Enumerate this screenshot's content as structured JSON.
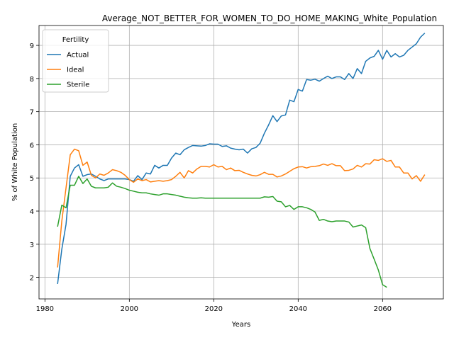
{
  "chart_data": {
    "type": "line",
    "title": "Average_NOT_BETTER_FOR_WOMEN_TO_DO_HOME_MAKING_White_Population",
    "xlabel": "Years",
    "ylabel": "% of White Population",
    "xlim": [
      1978.6,
      2074.4
    ],
    "ylim": [
      1.35,
      9.6
    ],
    "xticks": [
      1980,
      2000,
      2020,
      2040,
      2060
    ],
    "yticks": [
      2,
      3,
      4,
      5,
      6,
      7,
      8,
      9
    ],
    "grid": true,
    "legend": {
      "title": "Fertility",
      "placement": "upper-left"
    },
    "series": [
      {
        "name": "Actual",
        "color": "#1f77b4",
        "points": [
          [
            1983,
            1.8
          ],
          [
            1984,
            2.85
          ],
          [
            1985,
            3.6
          ],
          [
            1986,
            5.05
          ],
          [
            1987,
            5.3
          ],
          [
            1988,
            5.4
          ],
          [
            1989,
            5.05
          ],
          [
            1990,
            5.1
          ],
          [
            1991,
            5.12
          ],
          [
            1992,
            5.05
          ],
          [
            1993,
            4.97
          ],
          [
            1994,
            4.92
          ],
          [
            1995,
            4.97
          ],
          [
            1996,
            4.97
          ],
          [
            1997,
            4.97
          ],
          [
            1998,
            4.97
          ],
          [
            1999,
            4.97
          ],
          [
            2000,
            4.95
          ],
          [
            2001,
            4.9
          ],
          [
            2002,
            5.07
          ],
          [
            2003,
            4.95
          ],
          [
            2004,
            5.15
          ],
          [
            2005,
            5.12
          ],
          [
            2006,
            5.38
          ],
          [
            2007,
            5.3
          ],
          [
            2008,
            5.38
          ],
          [
            2009,
            5.38
          ],
          [
            2010,
            5.6
          ],
          [
            2011,
            5.75
          ],
          [
            2012,
            5.7
          ],
          [
            2013,
            5.85
          ],
          [
            2014,
            5.92
          ],
          [
            2015,
            5.98
          ],
          [
            2016,
            5.97
          ],
          [
            2017,
            5.96
          ],
          [
            2018,
            5.98
          ],
          [
            2019,
            6.03
          ],
          [
            2020,
            6.02
          ],
          [
            2021,
            6.02
          ],
          [
            2022,
            5.95
          ],
          [
            2023,
            5.97
          ],
          [
            2024,
            5.9
          ],
          [
            2025,
            5.87
          ],
          [
            2026,
            5.85
          ],
          [
            2027,
            5.87
          ],
          [
            2028,
            5.75
          ],
          [
            2029,
            5.88
          ],
          [
            2030,
            5.92
          ],
          [
            2031,
            6.05
          ],
          [
            2032,
            6.35
          ],
          [
            2033,
            6.6
          ],
          [
            2034,
            6.88
          ],
          [
            2035,
            6.7
          ],
          [
            2036,
            6.87
          ],
          [
            2037,
            6.9
          ],
          [
            2038,
            7.35
          ],
          [
            2039,
            7.3
          ],
          [
            2040,
            7.67
          ],
          [
            2041,
            7.62
          ],
          [
            2042,
            7.97
          ],
          [
            2043,
            7.95
          ],
          [
            2044,
            7.98
          ],
          [
            2045,
            7.92
          ],
          [
            2046,
            8.0
          ],
          [
            2047,
            8.07
          ],
          [
            2048,
            8.0
          ],
          [
            2049,
            8.05
          ],
          [
            2050,
            8.05
          ],
          [
            2051,
            7.97
          ],
          [
            2052,
            8.15
          ],
          [
            2053,
            8.0
          ],
          [
            2054,
            8.3
          ],
          [
            2055,
            8.15
          ],
          [
            2056,
            8.52
          ],
          [
            2057,
            8.62
          ],
          [
            2058,
            8.67
          ],
          [
            2059,
            8.85
          ],
          [
            2060,
            8.58
          ],
          [
            2061,
            8.85
          ],
          [
            2062,
            8.65
          ],
          [
            2063,
            8.75
          ],
          [
            2064,
            8.65
          ],
          [
            2065,
            8.7
          ],
          [
            2066,
            8.85
          ],
          [
            2067,
            8.95
          ],
          [
            2068,
            9.05
          ],
          [
            2069,
            9.25
          ],
          [
            2070,
            9.37
          ]
        ]
      },
      {
        "name": "Ideal",
        "color": "#ff7f0e",
        "points": [
          [
            1983,
            2.3
          ],
          [
            1984,
            3.7
          ],
          [
            1985,
            4.7
          ],
          [
            1986,
            5.7
          ],
          [
            1987,
            5.87
          ],
          [
            1988,
            5.82
          ],
          [
            1989,
            5.38
          ],
          [
            1990,
            5.48
          ],
          [
            1991,
            5.08
          ],
          [
            1992,
            5.0
          ],
          [
            1993,
            5.12
          ],
          [
            1994,
            5.08
          ],
          [
            1995,
            5.15
          ],
          [
            1996,
            5.25
          ],
          [
            1997,
            5.22
          ],
          [
            1998,
            5.17
          ],
          [
            1999,
            5.08
          ],
          [
            2000,
            4.95
          ],
          [
            2001,
            4.87
          ],
          [
            2002,
            4.97
          ],
          [
            2003,
            4.92
          ],
          [
            2004,
            4.95
          ],
          [
            2005,
            4.88
          ],
          [
            2006,
            4.9
          ],
          [
            2007,
            4.92
          ],
          [
            2008,
            4.9
          ],
          [
            2009,
            4.92
          ],
          [
            2010,
            4.95
          ],
          [
            2011,
            5.05
          ],
          [
            2012,
            5.17
          ],
          [
            2013,
            5.0
          ],
          [
            2014,
            5.22
          ],
          [
            2015,
            5.15
          ],
          [
            2016,
            5.27
          ],
          [
            2017,
            5.35
          ],
          [
            2018,
            5.35
          ],
          [
            2019,
            5.33
          ],
          [
            2020,
            5.4
          ],
          [
            2021,
            5.33
          ],
          [
            2022,
            5.35
          ],
          [
            2023,
            5.25
          ],
          [
            2024,
            5.3
          ],
          [
            2025,
            5.22
          ],
          [
            2026,
            5.23
          ],
          [
            2027,
            5.17
          ],
          [
            2028,
            5.12
          ],
          [
            2029,
            5.08
          ],
          [
            2030,
            5.06
          ],
          [
            2031,
            5.1
          ],
          [
            2032,
            5.17
          ],
          [
            2033,
            5.11
          ],
          [
            2034,
            5.11
          ],
          [
            2035,
            5.03
          ],
          [
            2036,
            5.06
          ],
          [
            2037,
            5.12
          ],
          [
            2038,
            5.2
          ],
          [
            2039,
            5.28
          ],
          [
            2040,
            5.33
          ],
          [
            2041,
            5.34
          ],
          [
            2042,
            5.3
          ],
          [
            2043,
            5.34
          ],
          [
            2044,
            5.35
          ],
          [
            2045,
            5.37
          ],
          [
            2046,
            5.42
          ],
          [
            2047,
            5.38
          ],
          [
            2048,
            5.43
          ],
          [
            2049,
            5.37
          ],
          [
            2050,
            5.37
          ],
          [
            2051,
            5.22
          ],
          [
            2052,
            5.23
          ],
          [
            2053,
            5.27
          ],
          [
            2054,
            5.38
          ],
          [
            2055,
            5.33
          ],
          [
            2056,
            5.43
          ],
          [
            2057,
            5.42
          ],
          [
            2058,
            5.55
          ],
          [
            2059,
            5.53
          ],
          [
            2060,
            5.58
          ],
          [
            2061,
            5.5
          ],
          [
            2062,
            5.53
          ],
          [
            2063,
            5.33
          ],
          [
            2064,
            5.33
          ],
          [
            2065,
            5.15
          ],
          [
            2066,
            5.15
          ],
          [
            2067,
            4.97
          ],
          [
            2068,
            5.07
          ],
          [
            2069,
            4.9
          ],
          [
            2070,
            5.1
          ]
        ]
      },
      {
        "name": "Sterile",
        "color": "#2ca02c",
        "points": [
          [
            1983,
            3.53
          ],
          [
            1984,
            4.18
          ],
          [
            1985,
            4.1
          ],
          [
            1986,
            4.78
          ],
          [
            1987,
            4.78
          ],
          [
            1988,
            5.05
          ],
          [
            1989,
            4.83
          ],
          [
            1990,
            4.97
          ],
          [
            1991,
            4.75
          ],
          [
            1992,
            4.7
          ],
          [
            1993,
            4.7
          ],
          [
            1994,
            4.7
          ],
          [
            1995,
            4.72
          ],
          [
            1996,
            4.85
          ],
          [
            1997,
            4.75
          ],
          [
            1998,
            4.72
          ],
          [
            1999,
            4.68
          ],
          [
            2000,
            4.63
          ],
          [
            2001,
            4.6
          ],
          [
            2002,
            4.57
          ],
          [
            2003,
            4.55
          ],
          [
            2004,
            4.55
          ],
          [
            2005,
            4.52
          ],
          [
            2006,
            4.5
          ],
          [
            2007,
            4.48
          ],
          [
            2008,
            4.52
          ],
          [
            2009,
            4.52
          ],
          [
            2010,
            4.5
          ],
          [
            2011,
            4.48
          ],
          [
            2012,
            4.45
          ],
          [
            2013,
            4.42
          ],
          [
            2014,
            4.4
          ],
          [
            2015,
            4.39
          ],
          [
            2016,
            4.39
          ],
          [
            2017,
            4.4
          ],
          [
            2018,
            4.39
          ],
          [
            2019,
            4.39
          ],
          [
            2020,
            4.39
          ],
          [
            2021,
            4.39
          ],
          [
            2022,
            4.39
          ],
          [
            2023,
            4.39
          ],
          [
            2024,
            4.39
          ],
          [
            2025,
            4.39
          ],
          [
            2026,
            4.39
          ],
          [
            2027,
            4.39
          ],
          [
            2028,
            4.39
          ],
          [
            2029,
            4.39
          ],
          [
            2030,
            4.39
          ],
          [
            2031,
            4.39
          ],
          [
            2032,
            4.43
          ],
          [
            2033,
            4.42
          ],
          [
            2034,
            4.44
          ],
          [
            2035,
            4.3
          ],
          [
            2036,
            4.28
          ],
          [
            2037,
            4.13
          ],
          [
            2038,
            4.17
          ],
          [
            2039,
            4.05
          ],
          [
            2040,
            4.13
          ],
          [
            2041,
            4.13
          ],
          [
            2042,
            4.1
          ],
          [
            2043,
            4.05
          ],
          [
            2044,
            3.97
          ],
          [
            2045,
            3.72
          ],
          [
            2046,
            3.75
          ],
          [
            2047,
            3.7
          ],
          [
            2048,
            3.68
          ],
          [
            2049,
            3.7
          ],
          [
            2050,
            3.7
          ],
          [
            2051,
            3.7
          ],
          [
            2052,
            3.67
          ],
          [
            2053,
            3.52
          ],
          [
            2054,
            3.55
          ],
          [
            2055,
            3.58
          ],
          [
            2056,
            3.5
          ],
          [
            2057,
            2.87
          ],
          [
            2058,
            2.55
          ],
          [
            2059,
            2.22
          ],
          [
            2060,
            1.78
          ],
          [
            2061,
            1.7
          ]
        ]
      }
    ]
  }
}
